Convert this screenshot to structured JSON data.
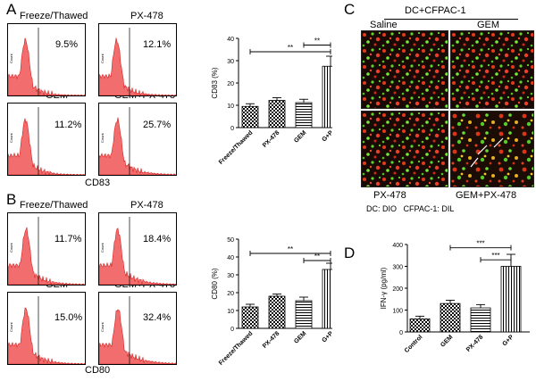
{
  "panels": {
    "A": {
      "letter": "A",
      "marker": "CD83",
      "histograms": [
        {
          "label": "Freeze/Thawed",
          "percent": "9.5%"
        },
        {
          "label": "PX-478",
          "percent": "12.1%"
        },
        {
          "label": "GEM",
          "percent": "11.2%"
        },
        {
          "label": "GEM+PX-478",
          "percent": "25.7%"
        }
      ],
      "y_tick_label": "Count"
    },
    "B": {
      "letter": "B",
      "marker": "CD80",
      "histograms": [
        {
          "label": "Freeze/Thawed",
          "percent": "11.7%"
        },
        {
          "label": "PX-478",
          "percent": "18.4%"
        },
        {
          "label": "GEM",
          "percent": "15.0%"
        },
        {
          "label": "GEM+PX-478",
          "percent": "32.4%"
        }
      ],
      "y_tick_label": "Count"
    },
    "C": {
      "letter": "C",
      "title": "DC+CFPAC-1",
      "images": [
        "Saline",
        "GEM",
        "PX-478",
        "GEM+PX-478"
      ],
      "legend": "DC: DIO   CFPAC-1: DIL"
    },
    "D": {
      "letter": "D"
    }
  },
  "chart_data": [
    {
      "type": "bar",
      "panel": "A",
      "categories": [
        "Freeze/Thawed",
        "PX-478",
        "GEM",
        "G+P"
      ],
      "values": [
        9.5,
        12.2,
        11.2,
        27.5
      ],
      "errors": [
        1.2,
        1.2,
        1.5,
        4.5
      ],
      "ylabel": "CD83 (%)",
      "ylim": [
        0,
        40
      ],
      "yticks": [
        "0",
        "10",
        "20",
        "30",
        "40"
      ],
      "patterns": [
        "checker",
        "checker",
        "hlines",
        "vlines"
      ],
      "significance": [
        {
          "from": 0,
          "to": 3,
          "label": "**",
          "y": 34
        },
        {
          "from": 2,
          "to": 3,
          "label": "**",
          "y": 37
        }
      ]
    },
    {
      "type": "bar",
      "panel": "B",
      "categories": [
        "Freeze/Thawed",
        "PX-478",
        "GEM",
        "G+P"
      ],
      "values": [
        12,
        18,
        15.5,
        33
      ],
      "errors": [
        1.5,
        1.2,
        2.0,
        3.5
      ],
      "ylabel": "CD80 (%)",
      "ylim": [
        0,
        50
      ],
      "yticks": [
        "0",
        "10",
        "20",
        "30",
        "40",
        "50"
      ],
      "patterns": [
        "checker",
        "checker",
        "hlines",
        "vlines"
      ],
      "significance": [
        {
          "from": 0,
          "to": 3,
          "label": "**",
          "y": 42
        },
        {
          "from": 2,
          "to": 3,
          "label": "**",
          "y": 38
        }
      ]
    },
    {
      "type": "bar",
      "panel": "D",
      "categories": [
        "Control",
        "GEM",
        "PX-478",
        "G+P"
      ],
      "values": [
        60,
        130,
        110,
        300
      ],
      "errors": [
        12,
        15,
        15,
        55
      ],
      "ylabel": "IFN-γ (pg/ml)",
      "ylim": [
        0,
        400
      ],
      "yticks": [
        "0",
        "100",
        "200",
        "300",
        "400"
      ],
      "patterns": [
        "checker",
        "checker",
        "hlines",
        "vlines"
      ],
      "significance": [
        {
          "from": 1,
          "to": 3,
          "label": "***",
          "y": 385
        },
        {
          "from": 2,
          "to": 3,
          "label": "***",
          "y": 330
        }
      ]
    }
  ],
  "colors": {
    "histogram_fill": "#f26d6d",
    "histogram_stroke": "#d62020",
    "bar_stroke": "#000000"
  }
}
